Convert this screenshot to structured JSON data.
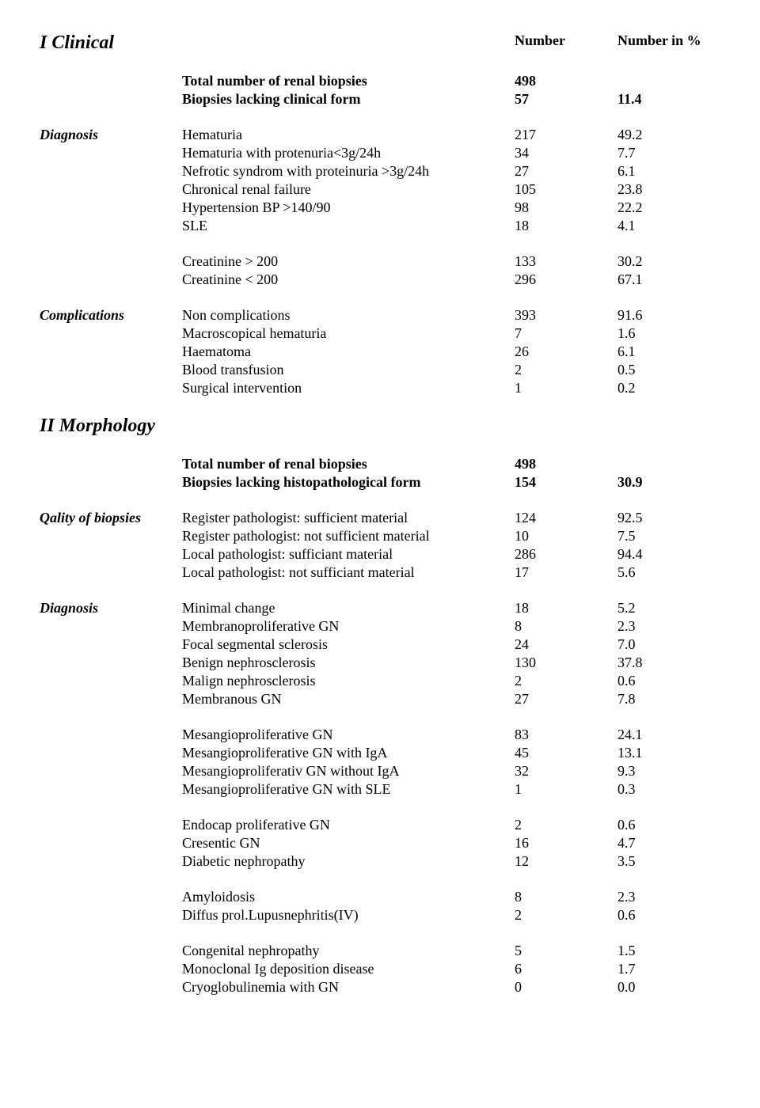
{
  "headers": {
    "number": "Number",
    "number_pct": "Number in %"
  },
  "section1": {
    "title": "I Clinical"
  },
  "section2": {
    "title": "II Morphology"
  },
  "clinical_totals": [
    {
      "label": "Total number of renal biopsies",
      "num": "498",
      "pct": "",
      "bold": true
    },
    {
      "label": "Biopsies lacking clinical form",
      "num": "57",
      "pct": "11.4",
      "bold": true
    }
  ],
  "diagnosis1": {
    "heading": "Diagnosis",
    "rows": [
      {
        "label": "Hematuria",
        "num": "217",
        "pct": "49.2"
      },
      {
        "label": "Hematuria with  protenuria<3g/24h",
        "num": "34",
        "pct": "7.7"
      },
      {
        "label": "Nefrotic syndrom with  proteinuria >3g/24h",
        "num": "27",
        "pct": "6.1"
      },
      {
        "label": "Chronical renal failure",
        "num": "105",
        "pct": "23.8"
      },
      {
        "label": "Hypertension BP >140/90",
        "num": "98",
        "pct": "22.2"
      },
      {
        "label": "SLE",
        "num": "18",
        "pct": "4.1"
      }
    ]
  },
  "creatinine": [
    {
      "label": "Creatinine > 200",
      "num": "133",
      "pct": "30.2"
    },
    {
      "label": "Creatinine < 200",
      "num": "296",
      "pct": "67.1"
    }
  ],
  "complications": {
    "heading": "Complications",
    "rows": [
      {
        "label": "Non complications",
        "num": "393",
        "pct": "91.6"
      },
      {
        "label": "Macroscopical hematuria",
        "num": "7",
        "pct": "1.6"
      },
      {
        "label": "Haematoma",
        "num": "26",
        "pct": "6.1"
      },
      {
        "label": "Blood transfusion",
        "num": "2",
        "pct": "0.5"
      },
      {
        "label": "Surgical intervention",
        "num": "1",
        "pct": "0.2"
      }
    ]
  },
  "morph_totals": [
    {
      "label": "Total number of renal biopsies",
      "num": "498",
      "pct": "",
      "bold": true
    },
    {
      "label": "Biopsies lacking histopathological form",
      "num": "154",
      "pct": "30.9",
      "bold": true
    }
  ],
  "quality": {
    "heading": "Qality of biopsies",
    "rows": [
      {
        "label": "Register pathologist: sufficient material",
        "num": "124",
        "pct": "92.5"
      },
      {
        "label": "Register pathologist: not sufficient material",
        "num": "10",
        "pct": "7.5"
      },
      {
        "label": "Local pathologist: sufficiant material",
        "num": "286",
        "pct": "94.4"
      },
      {
        "label": "Local pathologist: not sufficiant material",
        "num": "17",
        "pct": "5.6"
      }
    ]
  },
  "diagnosis2": {
    "heading": "Diagnosis",
    "group1": [
      {
        "label": "Minimal change",
        "num": "18",
        "pct": "5.2"
      },
      {
        "label": "Membranoproliferative GN",
        "num": "8",
        "pct": "2.3"
      },
      {
        "label": "Focal segmental sclerosis",
        "num": "24",
        "pct": "7.0"
      },
      {
        "label": "Benign nephrosclerosis",
        "num": "130",
        "pct": "37.8"
      },
      {
        "label": "Malign nephrosclerosis",
        "num": "2",
        "pct": "0.6"
      },
      {
        "label": "Membranous GN",
        "num": "27",
        "pct": "7.8"
      }
    ],
    "group2": [
      {
        "label": "Mesangioproliferative GN",
        "num": "83",
        "pct": "24.1"
      },
      {
        "label": "Mesangioproliferative GN with IgA",
        "num": "45",
        "pct": "13.1"
      },
      {
        "label": "Mesangioproliferativ GN without  IgA",
        "num": "32",
        "pct": "9.3"
      },
      {
        "label": "Mesangioproliferative GN with SLE",
        "num": "1",
        "pct": "0.3"
      }
    ],
    "group3": [
      {
        "label": "Endocap proliferative GN",
        "num": "2",
        "pct": "0.6"
      },
      {
        "label": "Cresentic GN",
        "num": "16",
        "pct": "4.7"
      },
      {
        "label": "Diabetic nephropathy",
        "num": "12",
        "pct": "3.5"
      }
    ],
    "group4": [
      {
        "label": "Amyloidosis",
        "num": "8",
        "pct": "2.3"
      },
      {
        "label": "Diffus prol.Lupusnephritis(IV)",
        "num": "2",
        "pct": "0.6"
      }
    ],
    "group5": [
      {
        "label": "Congenital nephropathy",
        "num": "5",
        "pct": "1.5"
      },
      {
        "label": "Monoclonal Ig deposition disease",
        "num": "6",
        "pct": "1.7"
      },
      {
        "label": "Cryoglobulinemia with GN",
        "num": "0",
        "pct": "0.0"
      }
    ]
  }
}
